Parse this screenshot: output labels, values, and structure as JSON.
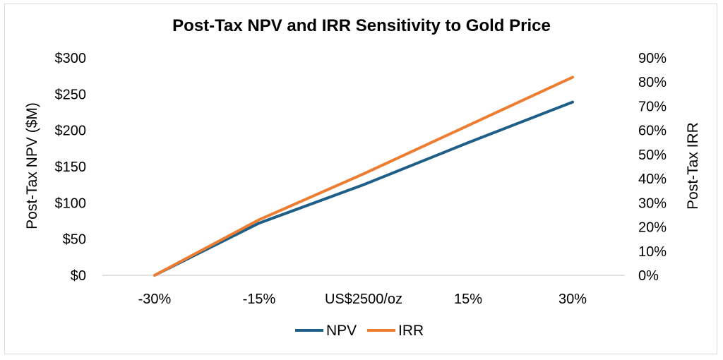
{
  "chart_data": {
    "type": "line",
    "title": "Post-Tax NPV and IRR Sensitivity to Gold Price",
    "xlabel": "",
    "ylabel": "Post-Tax NPV ($M)",
    "y2label": "Post-Tax IRR",
    "categories": [
      "-30%",
      "-15%",
      "US$2500/oz",
      "15%",
      "30%"
    ],
    "ylim": [
      0,
      300
    ],
    "y2lim": [
      0,
      0.9
    ],
    "y_ticks": [
      "$0",
      "$50",
      "$100",
      "$150",
      "$200",
      "$250",
      "$300"
    ],
    "y2_ticks": [
      "0%",
      "10%",
      "20%",
      "30%",
      "40%",
      "50%",
      "60%",
      "70%",
      "80%",
      "90%"
    ],
    "series": [
      {
        "name": "NPV",
        "axis": "left",
        "color": "#1f5f87",
        "values": [
          0,
          72,
          125,
          183,
          239
        ]
      },
      {
        "name": "IRR",
        "axis": "right",
        "color": "#ed7d31",
        "values": [
          0,
          0.23,
          0.42,
          0.62,
          0.82
        ]
      }
    ],
    "legend": "bottom",
    "grid": false
  }
}
